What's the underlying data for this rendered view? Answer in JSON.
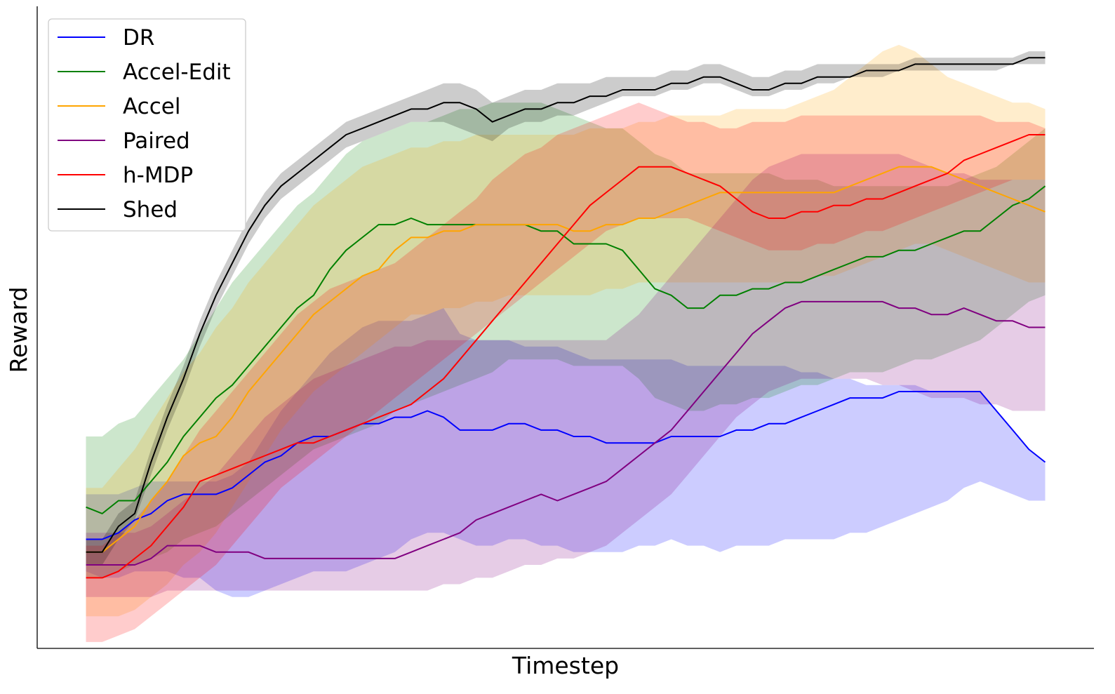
{
  "chart_data": {
    "type": "line",
    "title": "",
    "xlabel": "Timestep",
    "ylabel": "Reward",
    "x_ticks_shown": false,
    "y_ticks_shown": false,
    "grid": false,
    "legend_position": "top-left",
    "x": [
      0,
      1,
      2,
      3,
      4,
      5,
      6,
      7,
      8,
      9,
      10,
      11,
      12,
      13,
      14,
      15,
      16,
      17,
      18,
      19,
      20,
      21,
      22,
      23,
      24,
      25,
      26,
      27,
      28,
      29,
      30,
      31,
      32,
      33,
      34,
      35,
      36,
      37,
      38,
      39,
      40,
      41,
      42,
      43,
      44,
      45,
      46,
      47,
      48,
      49,
      50,
      51,
      52,
      53,
      54,
      55,
      56,
      57,
      58,
      59
    ],
    "xlim": [
      -3,
      62
    ],
    "ylim": [
      0.05,
      1.05
    ],
    "series": [
      {
        "name": "DR",
        "color": "#0000ff",
        "mean": [
          0.22,
          0.22,
          0.23,
          0.25,
          0.26,
          0.28,
          0.29,
          0.29,
          0.29,
          0.3,
          0.32,
          0.34,
          0.35,
          0.37,
          0.38,
          0.38,
          0.39,
          0.4,
          0.4,
          0.41,
          0.41,
          0.42,
          0.41,
          0.39,
          0.39,
          0.39,
          0.4,
          0.4,
          0.39,
          0.39,
          0.38,
          0.38,
          0.37,
          0.37,
          0.37,
          0.37,
          0.38,
          0.38,
          0.38,
          0.38,
          0.39,
          0.39,
          0.4,
          0.4,
          0.41,
          0.42,
          0.43,
          0.44,
          0.44,
          0.44,
          0.45,
          0.45,
          0.45,
          0.45,
          0.45,
          0.45,
          0.42,
          0.39,
          0.36,
          0.34
        ],
        "lower": [
          0.17,
          0.16,
          0.16,
          0.17,
          0.17,
          0.17,
          0.16,
          0.16,
          0.14,
          0.13,
          0.13,
          0.14,
          0.15,
          0.16,
          0.17,
          0.17,
          0.17,
          0.18,
          0.19,
          0.2,
          0.22,
          0.23,
          0.23,
          0.22,
          0.21,
          0.21,
          0.22,
          0.22,
          0.21,
          0.21,
          0.2,
          0.2,
          0.2,
          0.2,
          0.21,
          0.21,
          0.22,
          0.21,
          0.21,
          0.2,
          0.21,
          0.21,
          0.21,
          0.22,
          0.22,
          0.22,
          0.22,
          0.23,
          0.23,
          0.24,
          0.25,
          0.26,
          0.27,
          0.28,
          0.3,
          0.31,
          0.3,
          0.29,
          0.28,
          0.28
        ],
        "upper": [
          0.29,
          0.29,
          0.29,
          0.3,
          0.31,
          0.31,
          0.31,
          0.31,
          0.31,
          0.32,
          0.34,
          0.38,
          0.42,
          0.45,
          0.48,
          0.51,
          0.53,
          0.55,
          0.56,
          0.56,
          0.56,
          0.57,
          0.58,
          0.54,
          0.53,
          0.53,
          0.53,
          0.52,
          0.52,
          0.52,
          0.51,
          0.5,
          0.5,
          0.5,
          0.5,
          0.5,
          0.5,
          0.49,
          0.49,
          0.49,
          0.49,
          0.49,
          0.49,
          0.49,
          0.48,
          0.48,
          0.47,
          0.47,
          0.46,
          0.46,
          0.46,
          0.46,
          0.45,
          0.45,
          0.45,
          0.45,
          0.42,
          0.39,
          0.36,
          0.34
        ]
      },
      {
        "name": "Accel-Edit",
        "color": "#008000",
        "mean": [
          0.27,
          0.26,
          0.28,
          0.28,
          0.31,
          0.34,
          0.38,
          0.41,
          0.44,
          0.46,
          0.49,
          0.52,
          0.55,
          0.58,
          0.6,
          0.64,
          0.67,
          0.69,
          0.71,
          0.71,
          0.72,
          0.71,
          0.71,
          0.71,
          0.71,
          0.71,
          0.71,
          0.71,
          0.7,
          0.7,
          0.68,
          0.68,
          0.68,
          0.67,
          0.64,
          0.61,
          0.6,
          0.58,
          0.58,
          0.6,
          0.6,
          0.61,
          0.61,
          0.62,
          0.62,
          0.63,
          0.64,
          0.65,
          0.66,
          0.66,
          0.67,
          0.67,
          0.68,
          0.69,
          0.7,
          0.7,
          0.72,
          0.74,
          0.75,
          0.77
        ],
        "lower": [
          0.16,
          0.16,
          0.17,
          0.18,
          0.19,
          0.2,
          0.22,
          0.23,
          0.24,
          0.26,
          0.28,
          0.3,
          0.32,
          0.34,
          0.36,
          0.37,
          0.38,
          0.39,
          0.4,
          0.42,
          0.43,
          0.44,
          0.45,
          0.46,
          0.47,
          0.48,
          0.5,
          0.5,
          0.5,
          0.5,
          0.49,
          0.49,
          0.49,
          0.49,
          0.47,
          0.44,
          0.43,
          0.42,
          0.42,
          0.43,
          0.43,
          0.44,
          0.44,
          0.45,
          0.46,
          0.46,
          0.47,
          0.48,
          0.48,
          0.48,
          0.49,
          0.5,
          0.5,
          0.51,
          0.52,
          0.53,
          0.55,
          0.57,
          0.59,
          0.6
        ],
        "upper": [
          0.38,
          0.38,
          0.4,
          0.41,
          0.44,
          0.47,
          0.5,
          0.54,
          0.58,
          0.62,
          0.65,
          0.68,
          0.71,
          0.74,
          0.76,
          0.79,
          0.82,
          0.84,
          0.85,
          0.86,
          0.87,
          0.87,
          0.88,
          0.89,
          0.89,
          0.9,
          0.9,
          0.9,
          0.9,
          0.89,
          0.88,
          0.87,
          0.86,
          0.86,
          0.84,
          0.82,
          0.81,
          0.79,
          0.79,
          0.79,
          0.79,
          0.79,
          0.79,
          0.78,
          0.78,
          0.78,
          0.77,
          0.77,
          0.77,
          0.77,
          0.77,
          0.77,
          0.77,
          0.77,
          0.78,
          0.79,
          0.8,
          0.82,
          0.84,
          0.86
        ]
      },
      {
        "name": "Accel",
        "color": "#ffa500",
        "mean": [
          0.2,
          0.2,
          0.22,
          0.24,
          0.28,
          0.31,
          0.35,
          0.37,
          0.38,
          0.41,
          0.45,
          0.48,
          0.51,
          0.54,
          0.57,
          0.59,
          0.61,
          0.63,
          0.64,
          0.67,
          0.69,
          0.69,
          0.7,
          0.7,
          0.71,
          0.71,
          0.71,
          0.71,
          0.71,
          0.71,
          0.7,
          0.7,
          0.71,
          0.71,
          0.72,
          0.72,
          0.73,
          0.74,
          0.75,
          0.76,
          0.76,
          0.76,
          0.76,
          0.76,
          0.76,
          0.76,
          0.76,
          0.77,
          0.78,
          0.79,
          0.8,
          0.8,
          0.8,
          0.79,
          0.78,
          0.77,
          0.76,
          0.75,
          0.74,
          0.73
        ],
        "lower": [
          0.1,
          0.1,
          0.1,
          0.11,
          0.13,
          0.15,
          0.18,
          0.2,
          0.23,
          0.27,
          0.31,
          0.35,
          0.39,
          0.42,
          0.45,
          0.47,
          0.49,
          0.51,
          0.53,
          0.55,
          0.57,
          0.57,
          0.58,
          0.58,
          0.59,
          0.59,
          0.6,
          0.6,
          0.6,
          0.6,
          0.6,
          0.6,
          0.61,
          0.61,
          0.62,
          0.62,
          0.62,
          0.62,
          0.62,
          0.62,
          0.62,
          0.62,
          0.62,
          0.62,
          0.62,
          0.63,
          0.63,
          0.64,
          0.65,
          0.66,
          0.67,
          0.68,
          0.68,
          0.67,
          0.66,
          0.65,
          0.64,
          0.63,
          0.62,
          0.62
        ],
        "upper": [
          0.3,
          0.3,
          0.33,
          0.36,
          0.4,
          0.44,
          0.48,
          0.51,
          0.55,
          0.58,
          0.62,
          0.65,
          0.68,
          0.71,
          0.74,
          0.76,
          0.78,
          0.8,
          0.81,
          0.82,
          0.83,
          0.83,
          0.84,
          0.84,
          0.85,
          0.85,
          0.85,
          0.85,
          0.85,
          0.85,
          0.85,
          0.86,
          0.86,
          0.86,
          0.87,
          0.87,
          0.88,
          0.88,
          0.88,
          0.88,
          0.89,
          0.89,
          0.89,
          0.89,
          0.9,
          0.91,
          0.92,
          0.94,
          0.96,
          0.98,
          0.99,
          0.98,
          0.96,
          0.94,
          0.93,
          0.92,
          0.91,
          0.9,
          0.9,
          0.89
        ]
      },
      {
        "name": "Paired",
        "color": "#800080",
        "mean": [
          0.18,
          0.18,
          0.18,
          0.18,
          0.19,
          0.21,
          0.21,
          0.21,
          0.2,
          0.2,
          0.2,
          0.19,
          0.19,
          0.19,
          0.19,
          0.19,
          0.19,
          0.19,
          0.19,
          0.19,
          0.2,
          0.21,
          0.22,
          0.23,
          0.25,
          0.26,
          0.27,
          0.28,
          0.29,
          0.28,
          0.29,
          0.3,
          0.31,
          0.33,
          0.35,
          0.37,
          0.39,
          0.42,
          0.45,
          0.48,
          0.51,
          0.54,
          0.56,
          0.58,
          0.59,
          0.59,
          0.59,
          0.59,
          0.59,
          0.59,
          0.58,
          0.58,
          0.57,
          0.57,
          0.58,
          0.57,
          0.56,
          0.56,
          0.55,
          0.55
        ],
        "lower": [
          0.13,
          0.13,
          0.13,
          0.13,
          0.13,
          0.14,
          0.14,
          0.14,
          0.14,
          0.14,
          0.14,
          0.14,
          0.14,
          0.14,
          0.14,
          0.14,
          0.14,
          0.14,
          0.14,
          0.14,
          0.14,
          0.14,
          0.15,
          0.15,
          0.16,
          0.16,
          0.17,
          0.18,
          0.18,
          0.19,
          0.19,
          0.2,
          0.21,
          0.23,
          0.25,
          0.27,
          0.29,
          0.32,
          0.35,
          0.38,
          0.41,
          0.43,
          0.45,
          0.46,
          0.47,
          0.47,
          0.47,
          0.47,
          0.47,
          0.46,
          0.46,
          0.45,
          0.44,
          0.44,
          0.44,
          0.43,
          0.43,
          0.42,
          0.42,
          0.42
        ],
        "upper": [
          0.23,
          0.23,
          0.23,
          0.23,
          0.24,
          0.26,
          0.28,
          0.3,
          0.32,
          0.35,
          0.38,
          0.41,
          0.43,
          0.45,
          0.47,
          0.48,
          0.49,
          0.5,
          0.51,
          0.52,
          0.52,
          0.53,
          0.53,
          0.53,
          0.53,
          0.53,
          0.53,
          0.53,
          0.53,
          0.53,
          0.53,
          0.53,
          0.53,
          0.55,
          0.57,
          0.6,
          0.63,
          0.66,
          0.69,
          0.72,
          0.75,
          0.78,
          0.8,
          0.81,
          0.82,
          0.82,
          0.82,
          0.82,
          0.82,
          0.82,
          0.82,
          0.81,
          0.8,
          0.79,
          0.79,
          0.78,
          0.78,
          0.78,
          0.78,
          0.78
        ]
      },
      {
        "name": "h-MDP",
        "color": "#ff0000",
        "mean": [
          0.16,
          0.16,
          0.17,
          0.19,
          0.21,
          0.24,
          0.27,
          0.31,
          0.32,
          0.33,
          0.34,
          0.35,
          0.36,
          0.37,
          0.37,
          0.38,
          0.39,
          0.4,
          0.41,
          0.42,
          0.43,
          0.45,
          0.47,
          0.5,
          0.53,
          0.56,
          0.59,
          0.62,
          0.65,
          0.68,
          0.71,
          0.74,
          0.76,
          0.78,
          0.8,
          0.8,
          0.8,
          0.79,
          0.78,
          0.77,
          0.75,
          0.73,
          0.72,
          0.72,
          0.73,
          0.73,
          0.74,
          0.74,
          0.75,
          0.75,
          0.76,
          0.77,
          0.78,
          0.79,
          0.81,
          0.82,
          0.83,
          0.84,
          0.85,
          0.85
        ],
        "lower": [
          0.06,
          0.06,
          0.07,
          0.08,
          0.1,
          0.12,
          0.14,
          0.16,
          0.18,
          0.21,
          0.24,
          0.27,
          0.3,
          0.32,
          0.34,
          0.36,
          0.38,
          0.4,
          0.42,
          0.44,
          0.46,
          0.48,
          0.5,
          0.52,
          0.54,
          0.56,
          0.58,
          0.6,
          0.62,
          0.64,
          0.66,
          0.68,
          0.7,
          0.71,
          0.72,
          0.72,
          0.72,
          0.72,
          0.71,
          0.7,
          0.69,
          0.68,
          0.67,
          0.67,
          0.67,
          0.68,
          0.68,
          0.69,
          0.7,
          0.7,
          0.71,
          0.72,
          0.73,
          0.74,
          0.75,
          0.76,
          0.77,
          0.78,
          0.78,
          0.78
        ],
        "upper": [
          0.21,
          0.21,
          0.23,
          0.25,
          0.28,
          0.31,
          0.35,
          0.39,
          0.42,
          0.45,
          0.48,
          0.51,
          0.54,
          0.57,
          0.59,
          0.61,
          0.62,
          0.63,
          0.64,
          0.65,
          0.67,
          0.69,
          0.71,
          0.73,
          0.75,
          0.78,
          0.8,
          0.82,
          0.83,
          0.85,
          0.86,
          0.87,
          0.88,
          0.89,
          0.9,
          0.89,
          0.88,
          0.87,
          0.87,
          0.86,
          0.86,
          0.87,
          0.87,
          0.87,
          0.88,
          0.88,
          0.88,
          0.88,
          0.88,
          0.88,
          0.88,
          0.88,
          0.88,
          0.88,
          0.88,
          0.88,
          0.87,
          0.87,
          0.87,
          0.86
        ]
      },
      {
        "name": "Shed",
        "color": "#000000",
        "mean": [
          0.2,
          0.2,
          0.24,
          0.26,
          0.34,
          0.41,
          0.47,
          0.54,
          0.6,
          0.65,
          0.7,
          0.74,
          0.77,
          0.79,
          0.81,
          0.83,
          0.85,
          0.86,
          0.87,
          0.88,
          0.89,
          0.89,
          0.9,
          0.9,
          0.89,
          0.87,
          0.88,
          0.89,
          0.89,
          0.9,
          0.9,
          0.91,
          0.91,
          0.92,
          0.92,
          0.92,
          0.93,
          0.93,
          0.94,
          0.94,
          0.93,
          0.92,
          0.92,
          0.93,
          0.93,
          0.94,
          0.94,
          0.94,
          0.95,
          0.95,
          0.95,
          0.96,
          0.96,
          0.96,
          0.96,
          0.96,
          0.96,
          0.96,
          0.97,
          0.97
        ],
        "lower": [
          0.18,
          0.18,
          0.22,
          0.25,
          0.32,
          0.39,
          0.45,
          0.52,
          0.58,
          0.63,
          0.68,
          0.72,
          0.75,
          0.77,
          0.79,
          0.81,
          0.83,
          0.84,
          0.85,
          0.86,
          0.87,
          0.87,
          0.87,
          0.86,
          0.85,
          0.84,
          0.86,
          0.87,
          0.87,
          0.88,
          0.88,
          0.89,
          0.9,
          0.91,
          0.91,
          0.91,
          0.92,
          0.92,
          0.93,
          0.93,
          0.92,
          0.91,
          0.91,
          0.92,
          0.92,
          0.93,
          0.93,
          0.94,
          0.94,
          0.94,
          0.95,
          0.95,
          0.95,
          0.95,
          0.95,
          0.95,
          0.95,
          0.96,
          0.96,
          0.96
        ],
        "upper": [
          0.22,
          0.22,
          0.26,
          0.28,
          0.36,
          0.43,
          0.49,
          0.56,
          0.62,
          0.67,
          0.72,
          0.76,
          0.79,
          0.81,
          0.83,
          0.85,
          0.87,
          0.88,
          0.89,
          0.9,
          0.91,
          0.92,
          0.93,
          0.93,
          0.92,
          0.9,
          0.91,
          0.92,
          0.92,
          0.93,
          0.93,
          0.93,
          0.94,
          0.94,
          0.94,
          0.94,
          0.95,
          0.95,
          0.96,
          0.96,
          0.95,
          0.94,
          0.94,
          0.95,
          0.95,
          0.96,
          0.96,
          0.96,
          0.96,
          0.96,
          0.96,
          0.97,
          0.97,
          0.97,
          0.97,
          0.97,
          0.97,
          0.97,
          0.98,
          0.98
        ]
      }
    ]
  }
}
